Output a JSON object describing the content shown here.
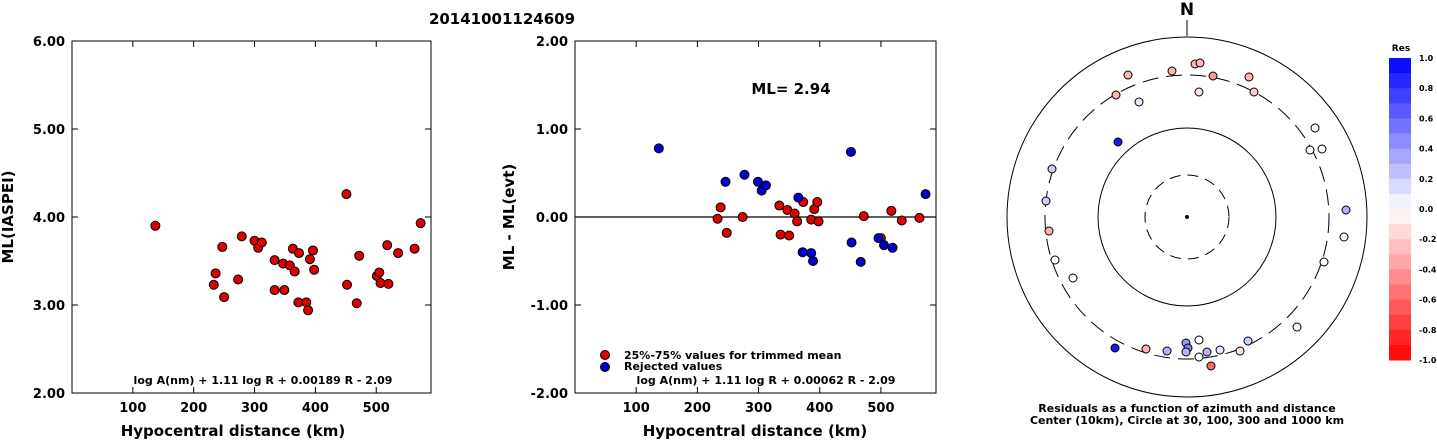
{
  "title": "20141001124609",
  "chart_data": [
    {
      "type": "scatter",
      "xlabel": "Hypocentral distance (km)",
      "ylabel": "ML(IASPEI)",
      "xlim": [
        0,
        590
      ],
      "ylim": [
        2.0,
        6.0
      ],
      "xticks": [
        "100",
        "200",
        "300",
        "400",
        "500"
      ],
      "yticks": [
        "2.00",
        "3.00",
        "4.00",
        "5.00",
        "6.00"
      ],
      "formula": "log A(nm) + 1.11 log R + 0.00189 R - 2.09",
      "marker_color": "#dd0000",
      "points": [
        [
          137,
          3.9
        ],
        [
          233,
          3.23
        ],
        [
          236,
          3.36
        ],
        [
          247,
          3.66
        ],
        [
          250,
          3.09
        ],
        [
          273,
          3.29
        ],
        [
          279,
          3.78
        ],
        [
          300,
          3.73
        ],
        [
          306,
          3.65
        ],
        [
          312,
          3.71
        ],
        [
          333,
          3.51
        ],
        [
          333,
          3.17
        ],
        [
          347,
          3.47
        ],
        [
          349,
          3.17
        ],
        [
          358,
          3.45
        ],
        [
          363,
          3.64
        ],
        [
          366,
          3.38
        ],
        [
          372,
          3.03
        ],
        [
          373,
          3.59
        ],
        [
          385,
          3.03
        ],
        [
          388,
          2.94
        ],
        [
          391,
          3.52
        ],
        [
          396,
          3.62
        ],
        [
          398,
          3.4
        ],
        [
          451,
          4.26
        ],
        [
          452,
          3.23
        ],
        [
          468,
          3.02
        ],
        [
          472,
          3.56
        ],
        [
          501,
          3.33
        ],
        [
          505,
          3.37
        ],
        [
          507,
          3.25
        ],
        [
          518,
          3.68
        ],
        [
          520,
          3.24
        ],
        [
          536,
          3.59
        ],
        [
          563,
          3.64
        ],
        [
          573,
          3.93
        ]
      ]
    },
    {
      "type": "scatter",
      "xlabel": "Hypocentral distance (km)",
      "ylabel": "ML - ML(evt)",
      "xlim": [
        0,
        590
      ],
      "ylim": [
        -2.0,
        2.0
      ],
      "xticks": [
        "100",
        "200",
        "300",
        "400",
        "500"
      ],
      "yticks": [
        "-2.00",
        "-1.00",
        "0.00",
        "1.00",
        "2.00"
      ],
      "ml_label": "ML= 2.94",
      "formula": "log A(nm) + 1.11 log R + 0.00062 R - 2.09",
      "legend": [
        {
          "label": "25%-75% values for trimmed mean",
          "color": "#dd0000"
        },
        {
          "label": "Rejected values",
          "color": "#0000cc"
        }
      ],
      "series": [
        {
          "name": "25%-75% values for trimmed mean",
          "color": "#dd0000",
          "points": [
            [
              233,
              -0.02
            ],
            [
              238,
              0.11
            ],
            [
              248,
              -0.18
            ],
            [
              274,
              0.0
            ],
            [
              334,
              0.13
            ],
            [
              336,
              -0.2
            ],
            [
              347,
              0.08
            ],
            [
              350,
              -0.21
            ],
            [
              359,
              0.04
            ],
            [
              363,
              -0.05
            ],
            [
              373,
              0.17
            ],
            [
              386,
              -0.03
            ],
            [
              391,
              0.09
            ],
            [
              396,
              0.17
            ],
            [
              398,
              -0.05
            ],
            [
              472,
              0.01
            ],
            [
              500,
              -0.24
            ],
            [
              517,
              0.07
            ],
            [
              534,
              -0.04
            ],
            [
              563,
              -0.01
            ]
          ]
        },
        {
          "name": "Rejected values",
          "color": "#0000cc",
          "points": [
            [
              137,
              0.78
            ],
            [
              246,
              0.4
            ],
            [
              277,
              0.48
            ],
            [
              299,
              0.4
            ],
            [
              305,
              0.3
            ],
            [
              312,
              0.36
            ],
            [
              365,
              0.22
            ],
            [
              372,
              -0.4
            ],
            [
              386,
              -0.41
            ],
            [
              389,
              -0.5
            ],
            [
              451,
              0.74
            ],
            [
              452,
              -0.29
            ],
            [
              467,
              -0.51
            ],
            [
              496,
              -0.24
            ],
            [
              505,
              -0.32
            ],
            [
              519,
              -0.35
            ],
            [
              573,
              0.26
            ]
          ]
        }
      ]
    },
    {
      "type": "scatter",
      "north_label": "N",
      "caption_line1": "Residuals as a function of azimuth and distance",
      "caption_line2": "Center (10km), Circle at 30, 100, 300 and 1000 km",
      "colorbar_title": "Res",
      "colorbar_ticks": [
        "1.0",
        "0.8",
        "0.6",
        "0.4",
        "0.2",
        "0.0",
        "-0.2",
        "-0.4",
        "-0.6",
        "-0.8",
        "-1.0"
      ],
      "stations": [
        {
          "x": 1172,
          "y": 71,
          "res": -0.3
        },
        {
          "x": 1195,
          "y": 64,
          "res": -0.3
        },
        {
          "x": 1200,
          "y": 63,
          "res": -0.3
        },
        {
          "x": 1213,
          "y": 76,
          "res": -0.4
        },
        {
          "x": 1249,
          "y": 77,
          "res": -0.3
        },
        {
          "x": 1128,
          "y": 75,
          "res": -0.3
        },
        {
          "x": 1116,
          "y": 95,
          "res": -0.3
        },
        {
          "x": 1199,
          "y": 92,
          "res": -0.1
        },
        {
          "x": 1254,
          "y": 92,
          "res": -0.2
        },
        {
          "x": 1139,
          "y": 102,
          "res": 0.1
        },
        {
          "x": 1118,
          "y": 142,
          "res": 0.9
        },
        {
          "x": 1315,
          "y": 128,
          "res": 0.0
        },
        {
          "x": 1310,
          "y": 150,
          "res": 0.0
        },
        {
          "x": 1322,
          "y": 149,
          "res": 0.0
        },
        {
          "x": 1052,
          "y": 169,
          "res": 0.2
        },
        {
          "x": 1346,
          "y": 210,
          "res": 0.3
        },
        {
          "x": 1046,
          "y": 201,
          "res": 0.2
        },
        {
          "x": 1049,
          "y": 231,
          "res": -0.3
        },
        {
          "x": 1344,
          "y": 237,
          "res": 0.0
        },
        {
          "x": 1055,
          "y": 260,
          "res": 0.0
        },
        {
          "x": 1324,
          "y": 262,
          "res": 0.0
        },
        {
          "x": 1073,
          "y": 278,
          "res": 0.0
        },
        {
          "x": 1297,
          "y": 327,
          "res": 0.0
        },
        {
          "x": 1115,
          "y": 348,
          "res": 0.9
        },
        {
          "x": 1146,
          "y": 349,
          "res": -0.3
        },
        {
          "x": 1167,
          "y": 351,
          "res": 0.3
        },
        {
          "x": 1186,
          "y": 343,
          "res": 0.4
        },
        {
          "x": 1188,
          "y": 348,
          "res": 0.5
        },
        {
          "x": 1199,
          "y": 340,
          "res": 0.0
        },
        {
          "x": 1186,
          "y": 352,
          "res": 0.3
        },
        {
          "x": 1199,
          "y": 357,
          "res": 0.0
        },
        {
          "x": 1207,
          "y": 352,
          "res": 0.3
        },
        {
          "x": 1211,
          "y": 366,
          "res": -0.6
        },
        {
          "x": 1220,
          "y": 350,
          "res": 0.1
        },
        {
          "x": 1240,
          "y": 351,
          "res": -0.1
        },
        {
          "x": 1248,
          "y": 341,
          "res": 0.2
        }
      ]
    }
  ]
}
